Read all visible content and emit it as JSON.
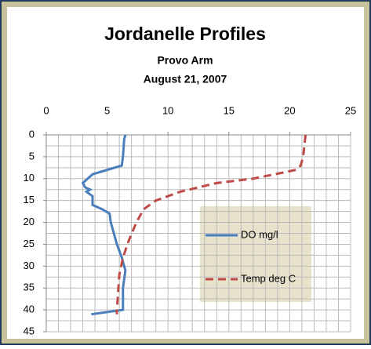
{
  "chart_data": {
    "type": "line",
    "title": "Jordanelle Profiles",
    "subtitle": "Provo Arm",
    "date": "August 21, 2007",
    "xlim": [
      0,
      25
    ],
    "xticks": [
      0,
      5,
      10,
      15,
      20,
      25
    ],
    "ylim": [
      0,
      45
    ],
    "yticks": [
      0,
      5,
      10,
      15,
      20,
      25,
      30,
      35,
      40,
      45
    ],
    "y_inverted": true,
    "x_axis_position": "top",
    "xminor": [
      0,
      1,
      2,
      3,
      4,
      5,
      6,
      7,
      8,
      9,
      10,
      11,
      12,
      13,
      14,
      15,
      16,
      17,
      18,
      19,
      20,
      21,
      22,
      23,
      24,
      25
    ],
    "yminor": [
      0,
      2.5,
      5,
      7.5,
      10,
      12.5,
      15,
      17.5,
      20,
      22.5,
      25,
      27.5,
      30,
      32.5,
      35,
      37.5,
      40,
      42.5,
      45
    ],
    "grid": true,
    "legend": "inside",
    "series": [
      {
        "name": "DO mg/l",
        "color": "#4a7ebb",
        "dash": "solid",
        "x": [
          6.5,
          6.4,
          6.3,
          6.2,
          3.8,
          3.0,
          3.2,
          3.6,
          3.3,
          3.8,
          3.8,
          4.6,
          5.2,
          5.3,
          5.5,
          5.8,
          6.2,
          6.5,
          6.3,
          6.3,
          3.7
        ],
        "y": [
          0,
          1,
          5,
          7,
          9,
          11,
          12,
          12.5,
          13,
          14,
          16,
          17,
          18,
          20,
          22,
          25,
          28,
          31,
          35,
          40,
          41
        ]
      },
      {
        "name": "Temp deg C",
        "color": "#be4b48",
        "dash": "dashed",
        "x": [
          21.3,
          21.1,
          20.9,
          20.5,
          17,
          14,
          11,
          9,
          8,
          7.4,
          6.8,
          6.3,
          6.0,
          5.9,
          5.8,
          5.8
        ],
        "y": [
          0,
          5,
          7,
          8,
          10,
          11,
          13,
          15,
          17,
          20,
          24,
          28,
          32,
          36,
          40,
          41
        ]
      }
    ]
  }
}
